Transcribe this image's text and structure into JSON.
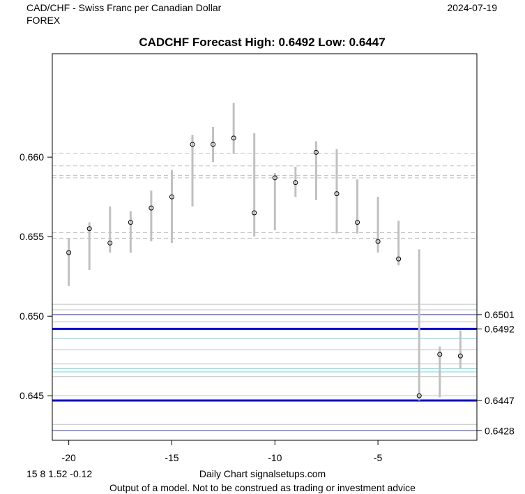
{
  "header": {
    "pair_name": "CAD/CHF - Swiss Franc per Canadian Dollar",
    "market": "FOREX",
    "date": "2024-07-19"
  },
  "footer": {
    "stats": "15 8 1.52 -0.12",
    "source": "Daily Chart signalsetups.com",
    "disclaimer": "Output of a model. Not to be construed as trading or investment advice"
  },
  "chart_data": {
    "type": "range-dot",
    "title": "CADCHF Forecast High: 0.6492 Low: 0.6447",
    "xlim": [
      -20.8,
      -0.2
    ],
    "ylim": [
      0.6422,
      0.6665
    ],
    "x_ticks": [
      -20,
      -15,
      -10,
      -5
    ],
    "x_tick_labels": [
      "-20",
      "-15",
      "-10",
      "-5"
    ],
    "y_ticks": [
      0.645,
      0.65,
      0.655,
      0.66
    ],
    "y_tick_labels": [
      "0.645",
      "0.650",
      "0.655",
      "0.660"
    ],
    "bars": [
      {
        "x": -20,
        "low": 0.6519,
        "high": 0.6549,
        "close": 0.654
      },
      {
        "x": -19,
        "low": 0.6529,
        "high": 0.6559,
        "close": 0.6555
      },
      {
        "x": -18,
        "low": 0.654,
        "high": 0.6569,
        "close": 0.6546
      },
      {
        "x": -17,
        "low": 0.654,
        "high": 0.6566,
        "close": 0.6559
      },
      {
        "x": -16,
        "low": 0.6547,
        "high": 0.6579,
        "close": 0.6568
      },
      {
        "x": -15,
        "low": 0.6546,
        "high": 0.6592,
        "close": 0.6575
      },
      {
        "x": -14,
        "low": 0.6569,
        "high": 0.6614,
        "close": 0.6608
      },
      {
        "x": -13,
        "low": 0.6597,
        "high": 0.6619,
        "close": 0.6608
      },
      {
        "x": -12,
        "low": 0.6602,
        "high": 0.6634,
        "close": 0.6612
      },
      {
        "x": -11,
        "low": 0.655,
        "high": 0.6615,
        "close": 0.6565
      },
      {
        "x": -10,
        "low": 0.6554,
        "high": 0.659,
        "close": 0.6587
      },
      {
        "x": -9,
        "low": 0.6575,
        "high": 0.6594,
        "close": 0.6584
      },
      {
        "x": -8,
        "low": 0.6573,
        "high": 0.661,
        "close": 0.6603
      },
      {
        "x": -7,
        "low": 0.6552,
        "high": 0.6605,
        "close": 0.6577
      },
      {
        "x": -6,
        "low": 0.6552,
        "high": 0.6586,
        "close": 0.6559
      },
      {
        "x": -5,
        "low": 0.654,
        "high": 0.6575,
        "close": 0.6547
      },
      {
        "x": -4,
        "low": 0.6532,
        "high": 0.656,
        "close": 0.6536
      },
      {
        "x": -3,
        "low": 0.6447,
        "high": 0.6542,
        "close": 0.645
      },
      {
        "x": -2,
        "low": 0.6449,
        "high": 0.6481,
        "close": 0.6476
      },
      {
        "x": -1,
        "low": 0.6467,
        "high": 0.6491,
        "close": 0.6475
      }
    ],
    "horizontal_lines": [
      {
        "y": 0.66025,
        "color": "#c0c0c0",
        "style": "dashed",
        "width": 1
      },
      {
        "y": 0.65945,
        "color": "#c0c0c0",
        "style": "dashed",
        "width": 1
      },
      {
        "y": 0.65885,
        "color": "#c0c0c0",
        "style": "dashed",
        "width": 1
      },
      {
        "y": 0.6587,
        "color": "#c0c0c0",
        "style": "dashed",
        "width": 1
      },
      {
        "y": 0.65525,
        "color": "#c0c0c0",
        "style": "dashed",
        "width": 1
      },
      {
        "y": 0.6549,
        "color": "#c0c0c0",
        "style": "dashed",
        "width": 1
      },
      {
        "y": 0.65075,
        "color": "#c0c0c0",
        "style": "solid",
        "width": 1
      },
      {
        "y": 0.6504,
        "color": "#c0c0c0",
        "style": "solid",
        "width": 1
      },
      {
        "y": 0.6501,
        "color": "#3333cc",
        "style": "solid",
        "width": 1
      },
      {
        "y": 0.64965,
        "color": "#c0c0c0",
        "style": "solid",
        "width": 1
      },
      {
        "y": 0.6492,
        "color": "#0000cc",
        "style": "solid",
        "width": 3
      },
      {
        "y": 0.6486,
        "color": "#66dddd",
        "style": "solid",
        "width": 1
      },
      {
        "y": 0.6479,
        "color": "#c0c0c0",
        "style": "solid",
        "width": 1
      },
      {
        "y": 0.647,
        "color": "#c0c0c0",
        "style": "solid",
        "width": 1
      },
      {
        "y": 0.6467,
        "color": "#66dddd",
        "style": "solid",
        "width": 1
      },
      {
        "y": 0.6465,
        "color": "#66dddd",
        "style": "solid",
        "width": 1
      },
      {
        "y": 0.6462,
        "color": "#c0c0c0",
        "style": "solid",
        "width": 1
      },
      {
        "y": 0.645,
        "color": "#c0c0c0",
        "style": "solid",
        "width": 1
      },
      {
        "y": 0.6447,
        "color": "#0000cc",
        "style": "solid",
        "width": 3
      },
      {
        "y": 0.6432,
        "color": "#c0c0c0",
        "style": "solid",
        "width": 1
      },
      {
        "y": 0.6428,
        "color": "#3333cc",
        "style": "solid",
        "width": 1
      }
    ],
    "right_labels": [
      {
        "y": 0.6501,
        "text": "0.6501"
      },
      {
        "y": 0.6492,
        "text": "0.6492"
      },
      {
        "y": 0.6447,
        "text": "0.6447"
      },
      {
        "y": 0.6428,
        "text": "0.6428"
      }
    ],
    "colors": {
      "range_bar": "#c0c0c0",
      "axis": "#000000",
      "dot_edge": "#000000"
    },
    "grid": false,
    "legend": "none"
  }
}
